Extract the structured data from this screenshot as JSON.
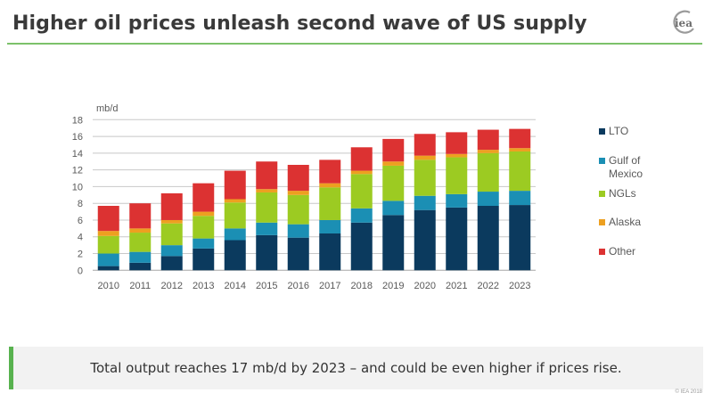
{
  "header": {
    "title": "Higher oil prices unleash second wave of US supply",
    "logo_text": "iea"
  },
  "footer": {
    "takeaway": "Total output reaches 17 mb/d by 2023 – and could be even higher if prices rise.",
    "copyright": "© IEA 2018",
    "accent_color": "#58b24f"
  },
  "chart_data": {
    "type": "bar",
    "stacked": true,
    "title": "",
    "xlabel": "",
    "ylabel": "mb/d",
    "ylim": [
      0,
      18
    ],
    "yticks": [
      0,
      2,
      4,
      6,
      8,
      10,
      12,
      14,
      16,
      18
    ],
    "grid": true,
    "legend_position": "right",
    "categories": [
      "2010",
      "2011",
      "2012",
      "2013",
      "2014",
      "2015",
      "2016",
      "2017",
      "2018",
      "2019",
      "2020",
      "2021",
      "2022",
      "2023"
    ],
    "series": [
      {
        "name": "LTO",
        "color": "#0b3a5e",
        "values": [
          0.5,
          0.9,
          1.7,
          2.6,
          3.6,
          4.2,
          3.9,
          4.4,
          5.7,
          6.6,
          7.2,
          7.5,
          7.7,
          7.8
        ]
      },
      {
        "name": "Gulf of Mexico",
        "color": "#1b8fb4",
        "values": [
          1.5,
          1.3,
          1.3,
          1.2,
          1.4,
          1.5,
          1.6,
          1.6,
          1.7,
          1.7,
          1.7,
          1.6,
          1.7,
          1.7
        ]
      },
      {
        "name": "NGLs",
        "color": "#9ccb22",
        "values": [
          2.1,
          2.3,
          2.6,
          2.7,
          3.1,
          3.6,
          3.5,
          3.9,
          4.1,
          4.2,
          4.3,
          4.4,
          4.6,
          4.7
        ]
      },
      {
        "name": "Alaska",
        "color": "#eda020",
        "values": [
          0.6,
          0.5,
          0.4,
          0.5,
          0.4,
          0.4,
          0.5,
          0.5,
          0.4,
          0.5,
          0.5,
          0.4,
          0.4,
          0.4
        ]
      },
      {
        "name": "Other",
        "color": "#dc3232",
        "values": [
          3.0,
          3.0,
          3.2,
          3.4,
          3.4,
          3.3,
          3.1,
          2.8,
          2.8,
          2.7,
          2.6,
          2.6,
          2.4,
          2.3
        ]
      }
    ]
  }
}
